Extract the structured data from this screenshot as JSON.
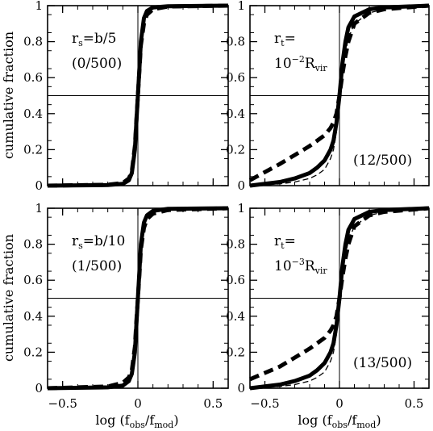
{
  "chart_data": {
    "type": "line",
    "xlabel_main": "log (f",
    "xlabel_sub1": "obs",
    "xlabel_mid": "/f",
    "xlabel_sub2": "mod",
    "xlabel_close": ")",
    "ylabel": "cumulative fraction",
    "xlim": [
      -0.6,
      0.6
    ],
    "ylim": [
      0,
      1
    ],
    "x_ticks": [
      -0.5,
      0,
      0.5
    ],
    "x_tick_labels": [
      "−0.5",
      "0",
      "0.5"
    ],
    "y_ticks": [
      0,
      0.2,
      0.4,
      0.6,
      0.8,
      1
    ],
    "y_tick_labels": [
      "0",
      "0.2",
      "0.4",
      "0.6",
      "0.8",
      "1"
    ],
    "reference_lines": {
      "y": 0.5,
      "x": 0
    },
    "panels": [
      {
        "label_main": "r",
        "label_sub": "s",
        "label_rest": "=b/5",
        "count": "(0/500)",
        "series": [
          {
            "style": "thick-solid",
            "x": [
              -0.6,
              -0.2,
              -0.1,
              -0.06,
              -0.04,
              -0.02,
              -0.01,
              0,
              0.01,
              0.02,
              0.04,
              0.06,
              0.1,
              0.2,
              0.6
            ],
            "y": [
              0,
              0.003,
              0.01,
              0.03,
              0.07,
              0.2,
              0.35,
              0.5,
              0.65,
              0.8,
              0.93,
              0.97,
              0.99,
              0.997,
              1
            ]
          },
          {
            "style": "thick-dashed",
            "x": [
              -0.6,
              -0.2,
              -0.1,
              -0.06,
              -0.04,
              -0.02,
              -0.01,
              0,
              0.01,
              0.02,
              0.04,
              0.06,
              0.1,
              0.2,
              0.6
            ],
            "y": [
              0,
              0.005,
              0.015,
              0.04,
              0.08,
              0.22,
              0.36,
              0.5,
              0.64,
              0.78,
              0.9,
              0.95,
              0.98,
              0.995,
              1
            ]
          },
          {
            "style": "thin-dashed",
            "x": [
              -0.6,
              -0.2,
              -0.1,
              -0.06,
              -0.04,
              -0.02,
              -0.01,
              0,
              0.01,
              0.02,
              0.04,
              0.06,
              0.1,
              0.2,
              0.6
            ],
            "y": [
              0,
              0.002,
              0.01,
              0.03,
              0.06,
              0.18,
              0.33,
              0.5,
              0.67,
              0.82,
              0.94,
              0.98,
              0.995,
              0.999,
              1
            ]
          }
        ]
      },
      {
        "label_main": "r",
        "label_sub": "t",
        "label_rest": "=",
        "label_line2_main": "10",
        "label_line2_sup": "−2",
        "label_line2_R": "R",
        "label_line2_sub": "vir",
        "count": "(12/500)",
        "series": [
          {
            "style": "thick-solid",
            "x": [
              -0.6,
              -0.4,
              -0.3,
              -0.2,
              -0.15,
              -0.1,
              -0.06,
              -0.04,
              -0.02,
              0,
              0.02,
              0.04,
              0.06,
              0.1,
              0.2,
              0.3,
              0.6
            ],
            "y": [
              0,
              0.02,
              0.04,
              0.07,
              0.1,
              0.14,
              0.2,
              0.25,
              0.35,
              0.5,
              0.68,
              0.8,
              0.88,
              0.94,
              0.98,
              0.99,
              1
            ]
          },
          {
            "style": "thick-dashed",
            "x": [
              -0.6,
              -0.4,
              -0.3,
              -0.2,
              -0.15,
              -0.1,
              -0.06,
              -0.04,
              -0.02,
              0,
              0.02,
              0.04,
              0.06,
              0.1,
              0.2,
              0.3,
              0.6
            ],
            "y": [
              0.03,
              0.12,
              0.17,
              0.22,
              0.25,
              0.28,
              0.32,
              0.35,
              0.4,
              0.5,
              0.62,
              0.72,
              0.8,
              0.9,
              0.96,
              0.98,
              1
            ]
          },
          {
            "style": "thin-dashed",
            "x": [
              -0.6,
              -0.4,
              -0.3,
              -0.2,
              -0.15,
              -0.1,
              -0.06,
              -0.04,
              -0.02,
              0,
              0.02,
              0.04,
              0.06,
              0.1,
              0.2,
              0.3,
              0.6
            ],
            "y": [
              0,
              0.01,
              0.02,
              0.04,
              0.06,
              0.09,
              0.15,
              0.2,
              0.3,
              0.5,
              0.64,
              0.74,
              0.82,
              0.9,
              0.96,
              0.98,
              1
            ]
          }
        ]
      },
      {
        "label_main": "r",
        "label_sub": "s",
        "label_rest": "=b/10",
        "count": "(1/500)",
        "series": [
          {
            "style": "thick-solid",
            "x": [
              -0.6,
              -0.2,
              -0.1,
              -0.06,
              -0.04,
              -0.02,
              -0.01,
              0,
              0.01,
              0.02,
              0.04,
              0.06,
              0.1,
              0.2,
              0.6
            ],
            "y": [
              0,
              0.005,
              0.015,
              0.04,
              0.08,
              0.2,
              0.35,
              0.5,
              0.65,
              0.8,
              0.92,
              0.96,
              0.985,
              0.997,
              1
            ]
          },
          {
            "style": "thick-dashed",
            "x": [
              -0.6,
              -0.2,
              -0.1,
              -0.06,
              -0.04,
              -0.02,
              -0.01,
              0,
              0.01,
              0.02,
              0.04,
              0.06,
              0.1,
              0.2,
              0.6
            ],
            "y": [
              0,
              0.01,
              0.03,
              0.06,
              0.1,
              0.23,
              0.37,
              0.5,
              0.63,
              0.77,
              0.89,
              0.94,
              0.97,
              0.99,
              1
            ]
          },
          {
            "style": "thin-dashed",
            "x": [
              -0.6,
              -0.2,
              -0.1,
              -0.06,
              -0.04,
              -0.02,
              -0.01,
              0,
              0.01,
              0.02,
              0.04,
              0.06,
              0.1,
              0.2,
              0.6
            ],
            "y": [
              0,
              0.004,
              0.012,
              0.035,
              0.07,
              0.19,
              0.34,
              0.5,
              0.66,
              0.81,
              0.93,
              0.97,
              0.99,
              0.998,
              1
            ]
          }
        ]
      },
      {
        "label_main": "r",
        "label_sub": "t",
        "label_rest": "=",
        "label_line2_main": "10",
        "label_line2_sup": "−3",
        "label_line2_R": "R",
        "label_line2_sub": "vir",
        "count": "(13/500)",
        "series": [
          {
            "style": "thick-solid",
            "x": [
              -0.6,
              -0.4,
              -0.3,
              -0.2,
              -0.15,
              -0.1,
              -0.06,
              -0.04,
              -0.02,
              0,
              0.02,
              0.04,
              0.06,
              0.1,
              0.2,
              0.3,
              0.6
            ],
            "y": [
              0,
              0.02,
              0.04,
              0.07,
              0.1,
              0.14,
              0.2,
              0.25,
              0.35,
              0.5,
              0.68,
              0.8,
              0.88,
              0.94,
              0.98,
              0.99,
              1
            ]
          },
          {
            "style": "thick-dashed",
            "x": [
              -0.6,
              -0.4,
              -0.3,
              -0.2,
              -0.15,
              -0.1,
              -0.06,
              -0.04,
              -0.02,
              0,
              0.02,
              0.04,
              0.06,
              0.1,
              0.2,
              0.3,
              0.6
            ],
            "y": [
              0.05,
              0.12,
              0.17,
              0.22,
              0.25,
              0.28,
              0.32,
              0.35,
              0.4,
              0.5,
              0.62,
              0.72,
              0.8,
              0.9,
              0.96,
              0.98,
              1
            ]
          },
          {
            "style": "thin-dashed",
            "x": [
              -0.6,
              -0.4,
              -0.3,
              -0.2,
              -0.15,
              -0.1,
              -0.06,
              -0.04,
              -0.02,
              0,
              0.02,
              0.04,
              0.06,
              0.1,
              0.2,
              0.3,
              0.6
            ],
            "y": [
              0,
              0.01,
              0.02,
              0.04,
              0.06,
              0.09,
              0.15,
              0.2,
              0.3,
              0.5,
              0.64,
              0.74,
              0.82,
              0.9,
              0.96,
              0.98,
              1
            ]
          }
        ]
      }
    ]
  }
}
